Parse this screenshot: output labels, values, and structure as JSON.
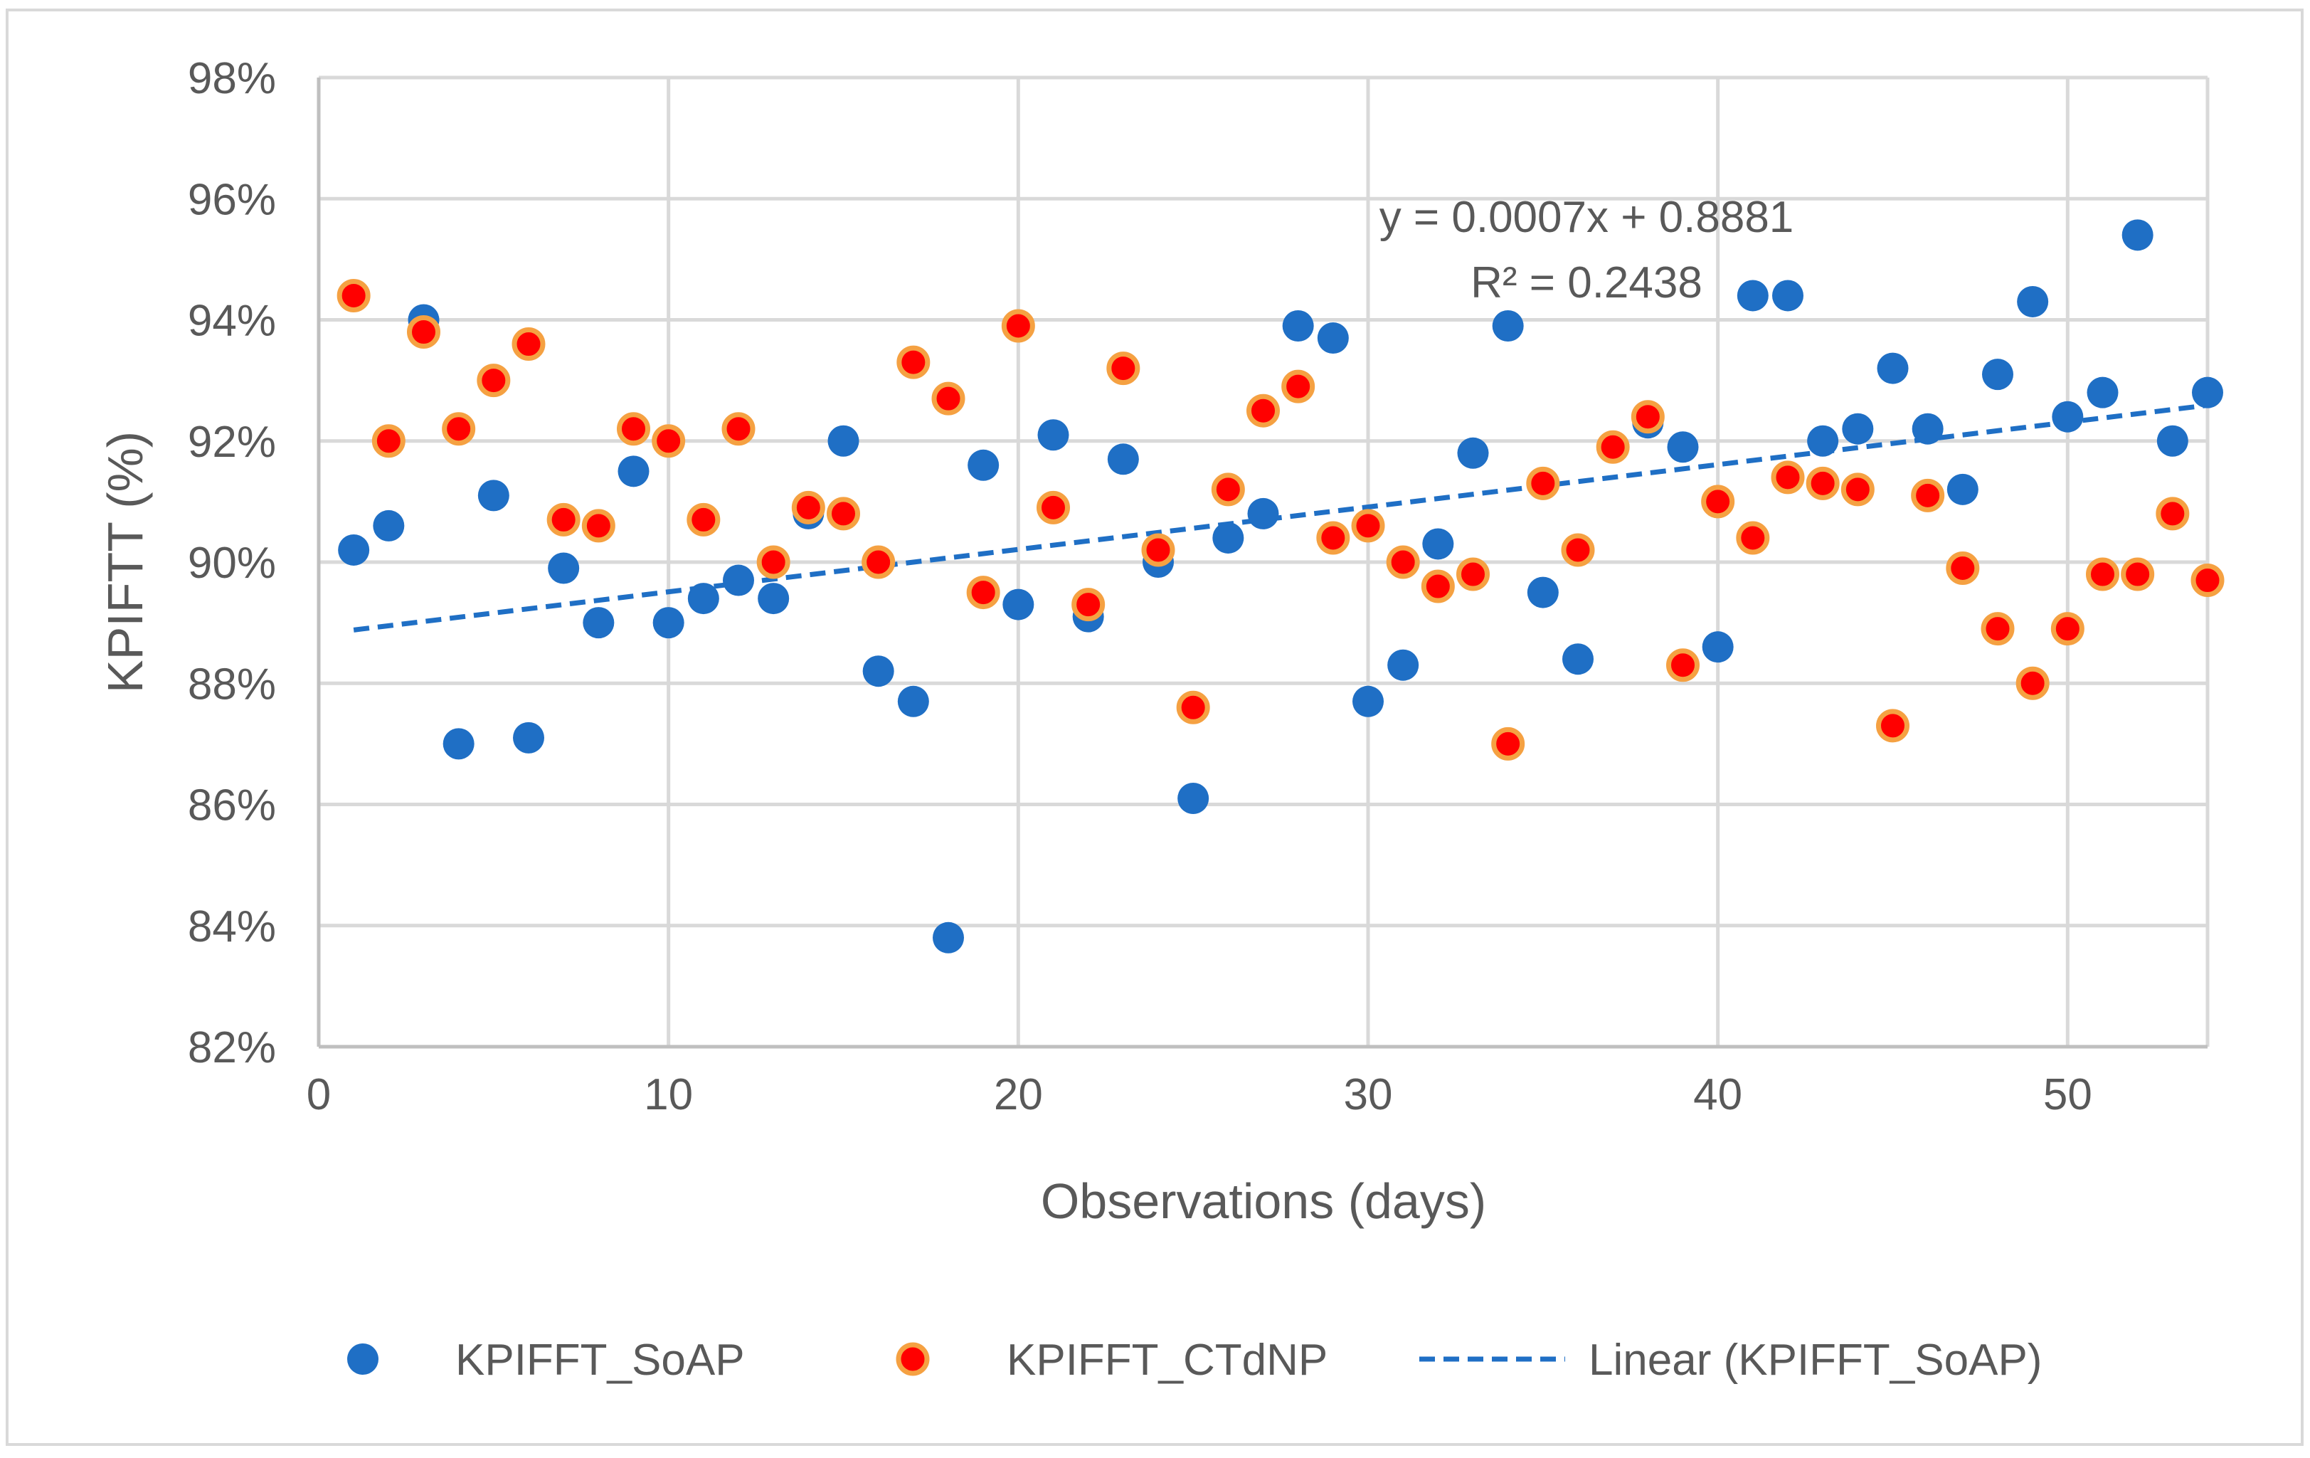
{
  "chart_data": {
    "type": "scatter",
    "title": "",
    "xlabel": "Observations (days)",
    "ylabel": "KPIFTT (%)",
    "xlim": [
      0,
      54
    ],
    "ylim": [
      0.82,
      0.98
    ],
    "x_ticks": [
      0,
      10,
      20,
      30,
      40,
      50
    ],
    "y_ticks": [
      0.82,
      0.84,
      0.86,
      0.88,
      0.9,
      0.92,
      0.94,
      0.96,
      0.98
    ],
    "x_tick_labels": [
      "0",
      "10",
      "20",
      "30",
      "40",
      "50"
    ],
    "y_tick_labels": [
      "82%",
      "84%",
      "86%",
      "88%",
      "90%",
      "92%",
      "94%",
      "96%",
      "98%"
    ],
    "grid": true,
    "legend_position": "bottom",
    "series": [
      {
        "name": "KPIFFT_SoAP",
        "color": "#1f6fc5",
        "marker": "circle",
        "x": [
          1,
          2,
          3,
          4,
          5,
          6,
          7,
          8,
          9,
          10,
          11,
          12,
          13,
          14,
          15,
          16,
          17,
          18,
          19,
          20,
          21,
          22,
          23,
          24,
          25,
          26,
          27,
          28,
          29,
          30,
          31,
          32,
          33,
          34,
          35,
          36,
          37,
          38,
          39,
          40,
          41,
          42,
          43,
          44,
          45,
          46,
          47,
          48,
          49,
          50,
          51,
          52,
          53,
          54
        ],
        "y": [
          0.902,
          0.906,
          0.94,
          0.87,
          0.911,
          0.871,
          0.899,
          0.89,
          0.915,
          0.89,
          0.894,
          0.897,
          0.894,
          0.908,
          0.92,
          0.882,
          0.877,
          0.838,
          0.916,
          0.893,
          0.921,
          0.891,
          0.917,
          0.9,
          0.861,
          0.904,
          0.908,
          0.939,
          0.937,
          0.877,
          0.883,
          0.903,
          0.918,
          0.939,
          0.895,
          0.884,
          0.919,
          0.923,
          0.919,
          0.886,
          0.944,
          0.944,
          0.92,
          0.922,
          0.932,
          0.922,
          0.912,
          0.931,
          0.943,
          0.924,
          0.928,
          0.954,
          0.92,
          0.928
        ]
      },
      {
        "name": "KPIFFT_CTdNP",
        "color": "#ff0000",
        "edge_color": "#f5a142",
        "marker": "circle",
        "x": [
          1,
          2,
          3,
          4,
          5,
          6,
          7,
          8,
          9,
          10,
          11,
          12,
          13,
          14,
          15,
          16,
          17,
          18,
          19,
          20,
          21,
          22,
          23,
          24,
          25,
          26,
          27,
          28,
          29,
          30,
          31,
          32,
          33,
          34,
          35,
          36,
          37,
          38,
          39,
          40,
          41,
          42,
          43,
          44,
          45,
          46,
          47,
          48,
          49,
          50,
          51,
          52,
          53,
          54
        ],
        "y": [
          0.944,
          0.92,
          0.938,
          0.922,
          0.93,
          0.936,
          0.907,
          0.906,
          0.922,
          0.92,
          0.907,
          0.922,
          0.9,
          0.909,
          0.908,
          0.9,
          0.933,
          0.927,
          0.895,
          0.939,
          0.909,
          0.893,
          0.932,
          0.902,
          0.876,
          0.912,
          0.925,
          0.929,
          0.904,
          0.906,
          0.9,
          0.896,
          0.898,
          0.87,
          0.913,
          0.902,
          0.919,
          0.924,
          0.883,
          0.91,
          0.904,
          0.914,
          0.913,
          0.912,
          0.873,
          0.911,
          0.899,
          0.889,
          0.88,
          0.889,
          0.898,
          0.898,
          0.908,
          0.897
        ]
      },
      {
        "name": "Linear (KPIFFT_SoAP)",
        "type": "trendline",
        "color": "#1f6fc5",
        "line_style": "dashed",
        "slope": 0.0007,
        "intercept": 0.8881,
        "x_range": [
          1,
          54
        ]
      }
    ],
    "annotations": {
      "equation": "y = 0.0007x + 0.8881",
      "r_squared": "R² = 0.2438"
    }
  }
}
